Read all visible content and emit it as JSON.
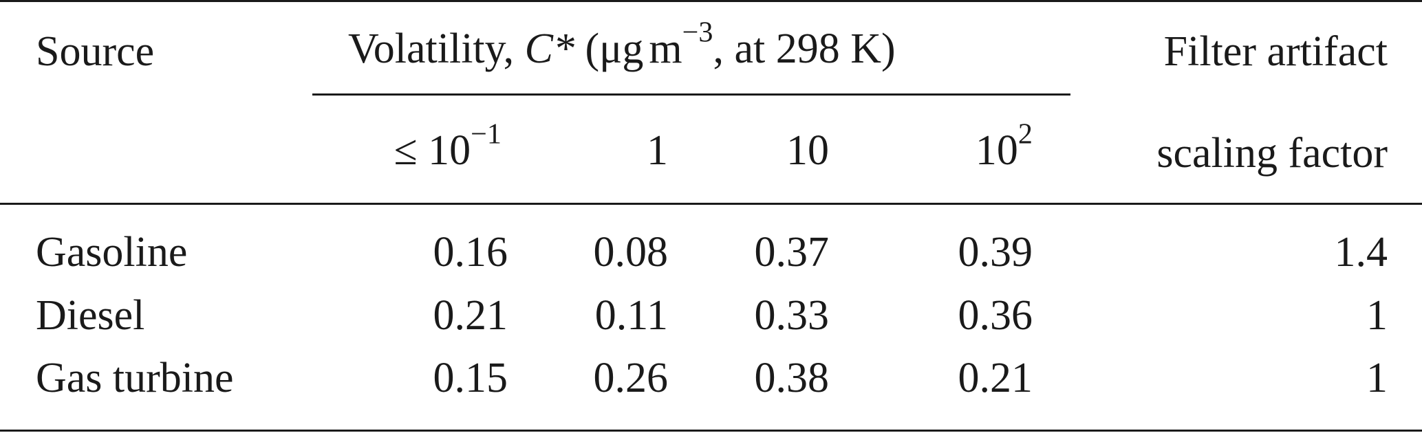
{
  "table": {
    "header": {
      "source": "Source",
      "volatility_prefix": "Volatility, ",
      "volatility_symbol": "C*",
      "volatility_open": " (μg",
      "volatility_unit_m": "m",
      "volatility_exponent": "−3",
      "volatility_suffix": ", at 298 K)",
      "filter_line1": "Filter artifact",
      "filter_line2": "scaling factor",
      "bins": [
        {
          "prefix": "≤ 10",
          "exponent": "−1"
        },
        {
          "prefix": "1",
          "exponent": ""
        },
        {
          "prefix": "10",
          "exponent": ""
        },
        {
          "prefix": "10",
          "exponent": "2"
        }
      ]
    },
    "rows": [
      {
        "source": "Gasoline",
        "values": [
          "0.16",
          "0.08",
          "0.37",
          "0.39"
        ],
        "factor": "1.4"
      },
      {
        "source": "Diesel",
        "values": [
          "0.21",
          "0.11",
          "0.33",
          "0.36"
        ],
        "factor": "1"
      },
      {
        "source": "Gas turbine",
        "values": [
          "0.15",
          "0.26",
          "0.38",
          "0.21"
        ],
        "factor": "1"
      }
    ]
  }
}
